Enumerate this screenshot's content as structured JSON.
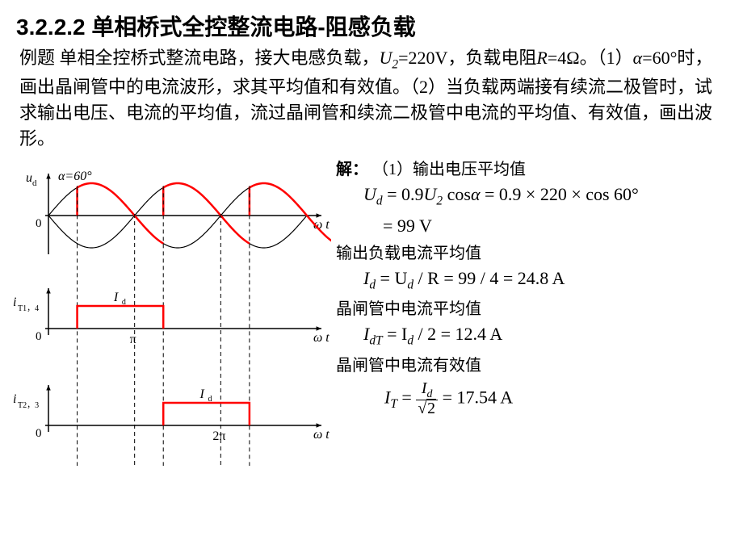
{
  "heading": "3.2.2.2 单相桥式全控整流电路-阻感负载",
  "problem": {
    "prefix": "例题 单相全控桥式整流电路，接大电感负载，",
    "u2": "U",
    "u2sub": "2",
    "u2val": "=220V，负载电阻",
    "r": "R",
    "rval": "=4Ω。（1）",
    "alpha": "α",
    "alphaval": "=60°时，画出晶闸管中的电流波形，求其平均值和有效值。（2）当负载两端接有续流二极管时，试求输出电压、电流的平均值，流过晶闸管和续流二极管中电流的平均值、有效值，画出波形。"
  },
  "chart": {
    "alpha_deg": 60,
    "alpha_label": "α=60°",
    "ud_label": "u",
    "ud_sub": "d",
    "it14_label": "i",
    "it14_sub": "T1，4",
    "it23_label": "i",
    "it23_sub": "T2，3",
    "id_label": "I",
    "id_sub": "d",
    "omega_t": "ω t",
    "pi_label": "π",
    "twopi_label": "2π",
    "zero": "0",
    "axis_color": "#000000",
    "sine_color": "#000000",
    "output_color": "#ff0000",
    "dash_color": "#000000",
    "id_level": 28,
    "periods": 3
  },
  "solution": {
    "heading": "解：",
    "part1_label": "（1）输出电压平均值",
    "eq1_a": "U",
    "eq1_a_sub": "d",
    "eq1_rhs1": " = 0.9",
    "eq1_u2": "U",
    "eq1_u2_sub": "2",
    "eq1_cos": " cos",
    "eq1_alpha": "α",
    "eq1_eq": " = 0.9 × 220 × cos 60°",
    "eq1_val": "= 99 V",
    "line2": "输出负载电流平均值",
    "eq2_lhs": "I",
    "eq2_lhs_sub": "d",
    "eq2_rhs": " = U",
    "eq2_ud_sub": "d",
    "eq2_r": " / R = 99 / 4 = 24.8 A",
    "line3": "晶闸管中电流平均值",
    "eq3_lhs": "I",
    "eq3_lhs_sub": "dT",
    "eq3_rhs": " = I",
    "eq3_id_sub": "d",
    "eq3_val": " / 2 = 12.4 A",
    "line4": "晶闸管中电流有效值",
    "eq4_lhs": "I",
    "eq4_lhs_sub": "T",
    "eq4_eq": " = ",
    "eq4_num": "I",
    "eq4_num_sub": "d",
    "eq4_den_val": "2",
    "eq4_val": " = 17.54 A"
  }
}
